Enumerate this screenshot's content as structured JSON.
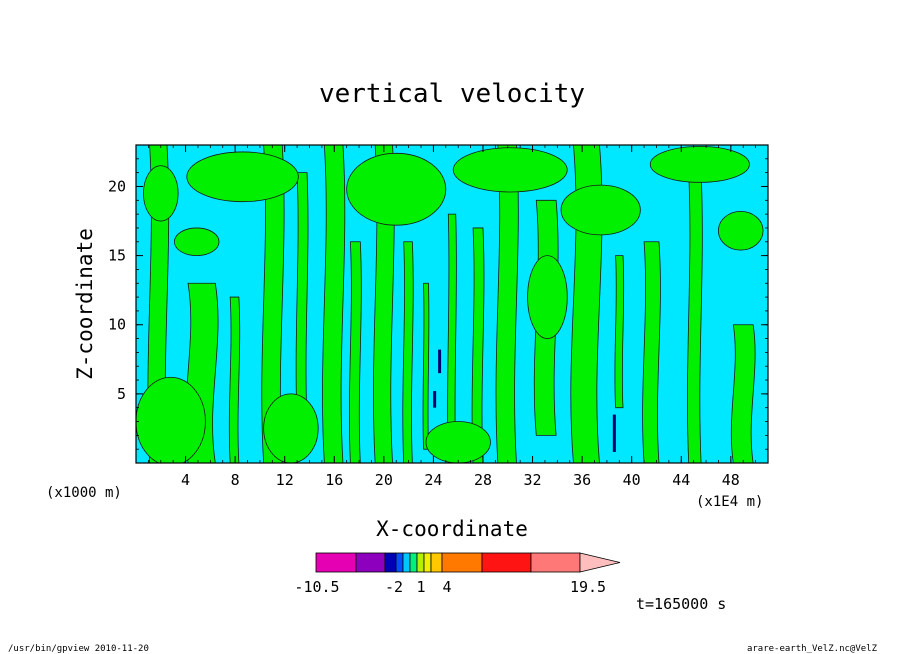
{
  "chart_data": {
    "type": "heatmap",
    "title": "vertical velocity",
    "xlabel": "X-coordinate",
    "ylabel": "Z-coordinate",
    "x_unit": "(x1E4 m)",
    "y_unit": "(x1000 m)",
    "xlim": [
      0,
      51
    ],
    "ylim": [
      0,
      23
    ],
    "x_ticks": [
      4,
      8,
      12,
      16,
      20,
      24,
      28,
      32,
      36,
      40,
      44,
      48
    ],
    "y_ticks": [
      5,
      10,
      15,
      20
    ],
    "grid": false,
    "background_color": "#00e8ff",
    "fill_color": "#00f000",
    "regions": [
      {
        "kind": "band",
        "x": 1.1,
        "w": 1.4,
        "y0": 0,
        "y1": 23
      },
      {
        "kind": "band",
        "x": 4.2,
        "w": 2.2,
        "y0": 0,
        "y1": 13
      },
      {
        "kind": "band",
        "x": 7.6,
        "w": 0.7,
        "y0": 0,
        "y1": 12
      },
      {
        "kind": "band",
        "x": 10.3,
        "w": 1.5,
        "y0": 0,
        "y1": 23
      },
      {
        "kind": "band",
        "x": 13.0,
        "w": 0.8,
        "y0": 3,
        "y1": 21
      },
      {
        "kind": "band",
        "x": 15.2,
        "w": 1.5,
        "y0": 0,
        "y1": 23
      },
      {
        "kind": "band",
        "x": 17.3,
        "w": 0.8,
        "y0": 0,
        "y1": 16
      },
      {
        "kind": "band",
        "x": 19.3,
        "w": 1.4,
        "y0": 0,
        "y1": 23
      },
      {
        "kind": "band",
        "x": 21.6,
        "w": 0.7,
        "y0": 0,
        "y1": 16
      },
      {
        "kind": "band",
        "x": 23.2,
        "w": 0.4,
        "y0": 1,
        "y1": 13
      },
      {
        "kind": "band",
        "x": 25.2,
        "w": 0.6,
        "y0": 0,
        "y1": 18
      },
      {
        "kind": "band",
        "x": 27.2,
        "w": 0.8,
        "y0": 0,
        "y1": 17
      },
      {
        "kind": "band",
        "x": 29.2,
        "w": 1.5,
        "y0": 0,
        "y1": 23
      },
      {
        "kind": "band",
        "x": 32.3,
        "w": 1.6,
        "y0": 2,
        "y1": 19
      },
      {
        "kind": "band",
        "x": 35.3,
        "w": 2.1,
        "y0": 0,
        "y1": 23
      },
      {
        "kind": "band",
        "x": 38.7,
        "w": 0.6,
        "y0": 4,
        "y1": 15
      },
      {
        "kind": "band",
        "x": 41.0,
        "w": 1.2,
        "y0": 0,
        "y1": 16
      },
      {
        "kind": "band",
        "x": 44.6,
        "w": 1.0,
        "y0": 0,
        "y1": 21
      },
      {
        "kind": "band",
        "x": 48.2,
        "w": 1.6,
        "y0": 0,
        "y1": 10
      },
      {
        "kind": "blob",
        "cx": 2.0,
        "cy": 19.5,
        "rx": 1.4,
        "ry": 2.0
      },
      {
        "kind": "blob",
        "cx": 8.6,
        "cy": 20.7,
        "rx": 4.5,
        "ry": 1.8
      },
      {
        "kind": "blob",
        "cx": 4.9,
        "cy": 16.0,
        "rx": 1.8,
        "ry": 1.0
      },
      {
        "kind": "blob",
        "cx": 21.0,
        "cy": 19.8,
        "rx": 4.0,
        "ry": 2.6
      },
      {
        "kind": "blob",
        "cx": 30.2,
        "cy": 21.2,
        "rx": 4.6,
        "ry": 1.6
      },
      {
        "kind": "blob",
        "cx": 37.5,
        "cy": 18.3,
        "rx": 3.2,
        "ry": 1.8
      },
      {
        "kind": "blob",
        "cx": 45.5,
        "cy": 21.6,
        "rx": 4.0,
        "ry": 1.3
      },
      {
        "kind": "blob",
        "cx": 2.8,
        "cy": 3.0,
        "rx": 2.8,
        "ry": 3.2
      },
      {
        "kind": "blob",
        "cx": 12.5,
        "cy": 2.5,
        "rx": 2.2,
        "ry": 2.5
      },
      {
        "kind": "blob",
        "cx": 26.0,
        "cy": 1.5,
        "rx": 2.6,
        "ry": 1.5
      },
      {
        "kind": "blob",
        "cx": 33.2,
        "cy": 12.0,
        "rx": 1.6,
        "ry": 3.0
      },
      {
        "kind": "blob",
        "cx": 48.8,
        "cy": 16.8,
        "rx": 1.8,
        "ry": 1.4
      }
    ],
    "markers": [
      {
        "x": 38.6,
        "y0": 0.8,
        "y1": 3.5
      },
      {
        "x": 24.5,
        "y0": 6.5,
        "y1": 8.2
      },
      {
        "x": 24.1,
        "y0": 4.0,
        "y1": 5.2
      }
    ],
    "colorbar": {
      "segments": [
        {
          "color": "#e600b4"
        },
        {
          "color": "#8c00be"
        },
        {
          "color": "#0000b4"
        },
        {
          "color": "#0050ff"
        },
        {
          "color": "#00c8ff"
        },
        {
          "color": "#00f078"
        },
        {
          "color": "#b4f000"
        },
        {
          "color": "#f0f000"
        },
        {
          "color": "#ffc800"
        },
        {
          "color": "#ff7800"
        },
        {
          "color": "#ff1414"
        },
        {
          "color": "#ff7878"
        }
      ],
      "arrow_color": "#ffbebe",
      "labels": [
        "-10.5",
        "-2",
        "1",
        "4",
        "19.5"
      ]
    },
    "time_label": "t=165000 s",
    "footer_left": "/usr/bin/gpview   2010-11-20",
    "footer_right": "arare-earth_VelZ.nc@VelZ"
  }
}
